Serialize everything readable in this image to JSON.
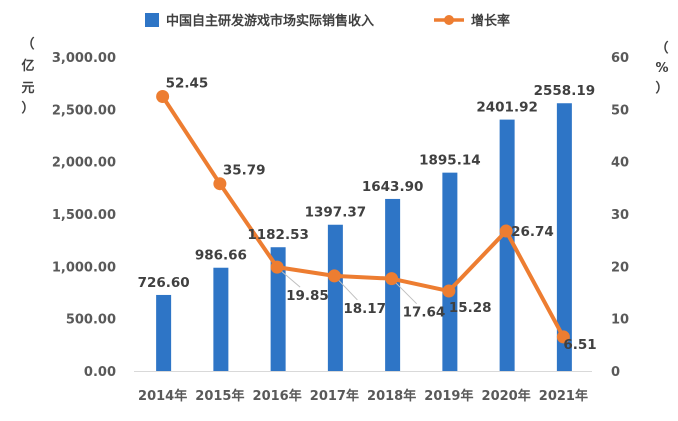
{
  "chart_data": {
    "type": "bar+line",
    "categories": [
      "2014年",
      "2015年",
      "2016年",
      "2017年",
      "2018年",
      "2019年",
      "2020年",
      "2021年"
    ],
    "series": [
      {
        "name": "中国自主研发游戏市场实际销售收入",
        "type": "bar",
        "axis": "left",
        "color": "#2E75C6",
        "values": [
          726.6,
          986.66,
          1182.53,
          1397.37,
          1643.9,
          1895.14,
          2401.92,
          2558.19
        ],
        "labels": [
          "726.60",
          "986.66",
          "1182.53",
          "1397.37",
          "1643.90",
          "1895.14",
          "2401.92",
          "2558.19"
        ]
      },
      {
        "name": "增长率",
        "type": "line",
        "axis": "right",
        "color": "#ED7D31",
        "values": [
          52.45,
          35.79,
          19.85,
          18.17,
          17.64,
          15.28,
          26.74,
          6.51
        ],
        "labels": [
          "52.45",
          "35.79",
          "19.85",
          "18.17",
          "17.64",
          "15.28",
          "26.74",
          "6.51"
        ]
      }
    ],
    "y_left": {
      "unit_label": [
        "（",
        "亿",
        "元",
        "）"
      ],
      "ylim": [
        0,
        3000
      ],
      "ticks": [
        "0.00",
        "500.00",
        "1,000.00",
        "1,500.00",
        "2,000.00",
        "2,500.00",
        "3,000.00"
      ],
      "tick_values": [
        0,
        500,
        1000,
        1500,
        2000,
        2500,
        3000
      ]
    },
    "y_right": {
      "unit_label": [
        "（",
        "%",
        "）"
      ],
      "ylim": [
        0,
        60
      ],
      "ticks": [
        "0",
        "10",
        "20",
        "30",
        "40",
        "50",
        "60"
      ],
      "tick_values": [
        0,
        10,
        20,
        30,
        40,
        50,
        60
      ]
    },
    "grid": false,
    "legend_position": "top"
  }
}
